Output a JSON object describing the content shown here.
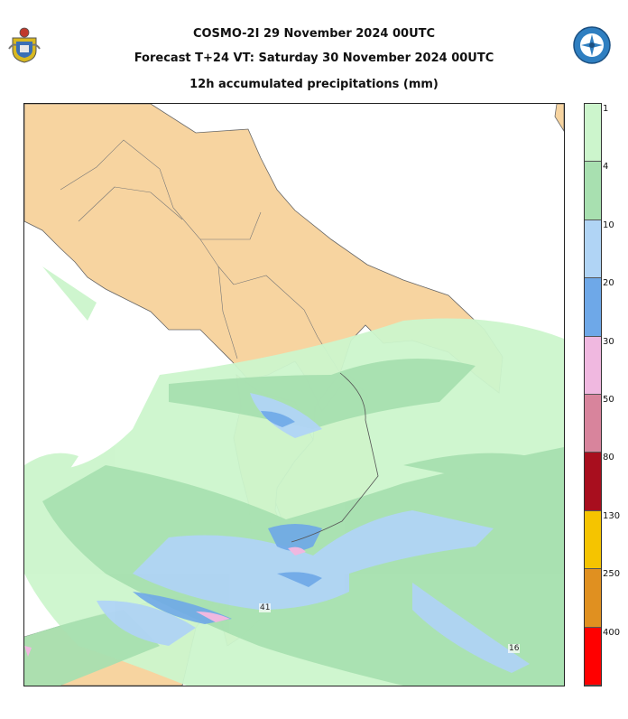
{
  "header": {
    "line1": "COSMO-2I 29 November 2024 00UTC",
    "line2": "Forecast T+24 VT: Saturday 30 November 2024 00UTC",
    "line3": "12h accumulated precipitations (mm)"
  },
  "legend": {
    "thresholds": [
      "1",
      "4",
      "10",
      "20",
      "30",
      "50",
      "80",
      "130",
      "250",
      "400"
    ],
    "colors": [
      "#ccf5cc",
      "#a8e0b0",
      "#b0d4f5",
      "#6ea8e8",
      "#f0b8e0",
      "#d8849c",
      "#a80e1e",
      "#f5c400",
      "#e09020",
      "#ff0000"
    ]
  },
  "map": {
    "land_color": "#f7d4a0",
    "sea_color": "#ffffff",
    "value_labels": [
      "41",
      "16"
    ]
  }
}
